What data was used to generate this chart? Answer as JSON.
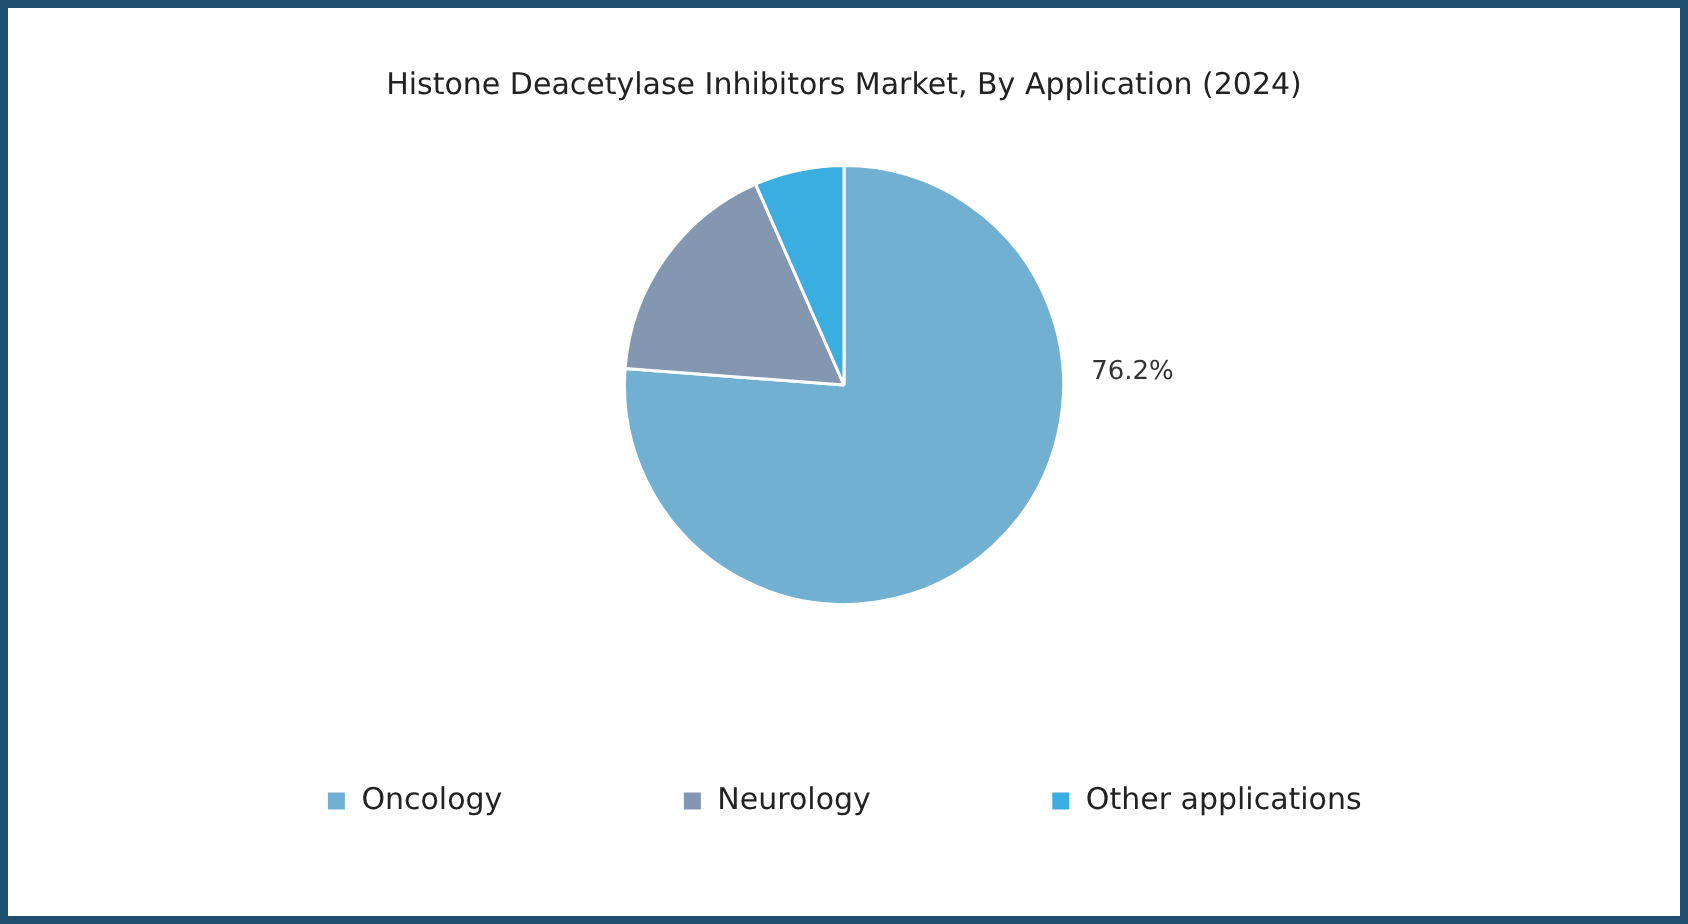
{
  "chart_data": {
    "type": "pie",
    "title": "Histone Deacetylase Inhibitors Market, By Application (2024)",
    "categories": [
      "Oncology",
      "Neurology",
      "Other applications"
    ],
    "values": [
      76.2,
      17.2,
      6.6
    ],
    "colors": [
      "#72b0d2",
      "#8497b0",
      "#3aaee0"
    ],
    "value_labels": [
      "76.2%",
      null,
      null
    ],
    "legend": "bottom"
  }
}
